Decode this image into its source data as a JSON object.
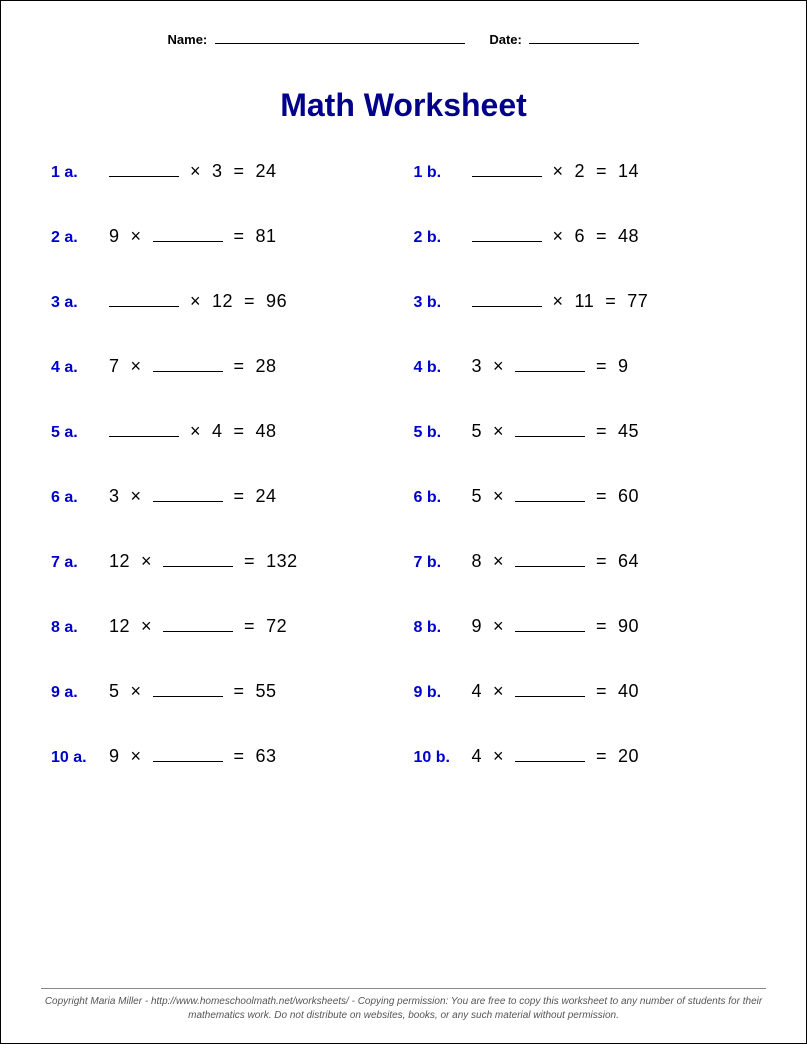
{
  "header": {
    "name_label": "Name:",
    "date_label": "Date:"
  },
  "title": "Math Worksheet",
  "colors": {
    "title": "#00008b",
    "label": "#0000cd",
    "text": "#000000",
    "background": "#ffffff",
    "border": "#000000",
    "footer_text": "#555555"
  },
  "typography": {
    "title_fontsize": 32,
    "label_fontsize": 16,
    "expr_fontsize": 18,
    "footer_fontsize": 10,
    "header_fontsize": 13
  },
  "problems": [
    {
      "label": "1 a.",
      "expr_html": "<span class='blank'></span>&nbsp;&nbsp;×&nbsp;&nbsp;3&nbsp;&nbsp;=&nbsp;&nbsp;24"
    },
    {
      "label": "1 b.",
      "expr_html": "<span class='blank'></span>&nbsp;&nbsp;×&nbsp;&nbsp;2&nbsp;&nbsp;=&nbsp;&nbsp;14"
    },
    {
      "label": "2 a.",
      "expr_html": "9&nbsp;&nbsp;×&nbsp;&nbsp;<span class='blank'></span>&nbsp;&nbsp;=&nbsp;&nbsp;81"
    },
    {
      "label": "2 b.",
      "expr_html": "<span class='blank'></span>&nbsp;&nbsp;×&nbsp;&nbsp;6&nbsp;&nbsp;=&nbsp;&nbsp;48"
    },
    {
      "label": "3 a.",
      "expr_html": "<span class='blank'></span>&nbsp;&nbsp;×&nbsp;&nbsp;12&nbsp;&nbsp;=&nbsp;&nbsp;96"
    },
    {
      "label": "3 b.",
      "expr_html": "<span class='blank'></span>&nbsp;&nbsp;×&nbsp;&nbsp;11&nbsp;&nbsp;=&nbsp;&nbsp;77"
    },
    {
      "label": "4 a.",
      "expr_html": "7&nbsp;&nbsp;×&nbsp;&nbsp;<span class='blank'></span>&nbsp;&nbsp;=&nbsp;&nbsp;28"
    },
    {
      "label": "4 b.",
      "expr_html": "3&nbsp;&nbsp;×&nbsp;&nbsp;<span class='blank'></span>&nbsp;&nbsp;=&nbsp;&nbsp;9"
    },
    {
      "label": "5 a.",
      "expr_html": "<span class='blank'></span>&nbsp;&nbsp;×&nbsp;&nbsp;4&nbsp;&nbsp;=&nbsp;&nbsp;48"
    },
    {
      "label": "5 b.",
      "expr_html": "5&nbsp;&nbsp;×&nbsp;&nbsp;<span class='blank'></span>&nbsp;&nbsp;=&nbsp;&nbsp;45"
    },
    {
      "label": "6 a.",
      "expr_html": "3&nbsp;&nbsp;×&nbsp;&nbsp;<span class='blank'></span>&nbsp;&nbsp;=&nbsp;&nbsp;24"
    },
    {
      "label": "6 b.",
      "expr_html": "5&nbsp;&nbsp;×&nbsp;&nbsp;<span class='blank'></span>&nbsp;&nbsp;=&nbsp;&nbsp;60"
    },
    {
      "label": "7 a.",
      "expr_html": "12&nbsp;&nbsp;×&nbsp;&nbsp;<span class='blank'></span>&nbsp;&nbsp;=&nbsp;&nbsp;132"
    },
    {
      "label": "7 b.",
      "expr_html": "8&nbsp;&nbsp;×&nbsp;&nbsp;<span class='blank'></span>&nbsp;&nbsp;=&nbsp;&nbsp;64"
    },
    {
      "label": "8 a.",
      "expr_html": "12&nbsp;&nbsp;×&nbsp;&nbsp;<span class='blank'></span>&nbsp;&nbsp;=&nbsp;&nbsp;72"
    },
    {
      "label": "8 b.",
      "expr_html": "9&nbsp;&nbsp;×&nbsp;&nbsp;<span class='blank'></span>&nbsp;&nbsp;=&nbsp;&nbsp;90"
    },
    {
      "label": "9 a.",
      "expr_html": "5&nbsp;&nbsp;×&nbsp;&nbsp;<span class='blank'></span>&nbsp;&nbsp;=&nbsp;&nbsp;55"
    },
    {
      "label": "9 b.",
      "expr_html": "4&nbsp;&nbsp;×&nbsp;&nbsp;<span class='blank'></span>&nbsp;&nbsp;=&nbsp;&nbsp;40"
    },
    {
      "label": "10 a.",
      "expr_html": "9&nbsp;&nbsp;×&nbsp;&nbsp;<span class='blank'></span>&nbsp;&nbsp;=&nbsp;&nbsp;63"
    },
    {
      "label": "10 b.",
      "expr_html": "4&nbsp;&nbsp;×&nbsp;&nbsp;<span class='blank'></span>&nbsp;&nbsp;=&nbsp;&nbsp;20"
    }
  ],
  "footer": "Copyright Maria Miller - http://www.homeschoolmath.net/worksheets/ - Copying permission: You are free to copy this worksheet to any number of students for their mathematics work. Do not distribute on websites, books, or any such material without permission."
}
